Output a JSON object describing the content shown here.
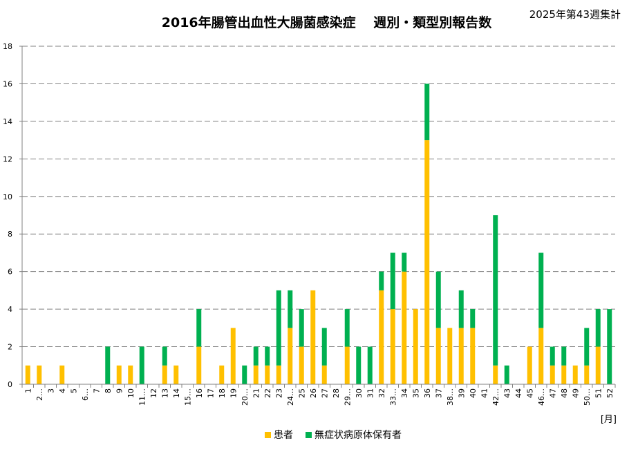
{
  "title": "2016年腸管出血性大腸菌感染症　 週別・類型別報告数",
  "subtitle": "2025年第43週集計",
  "x_unit_label": "[月]",
  "legend": [
    {
      "label": "患者",
      "color": "#FFC000"
    },
    {
      "label": "無症状病原体保有者",
      "color": "#00B050"
    }
  ],
  "chart_data": {
    "type": "bar",
    "stacked": true,
    "title": "2016年腸管出血性大腸菌感染症 週別・類型別報告数",
    "subtitle": "2025年第43週集計",
    "xlabel": "[月]",
    "ylabel": "",
    "ylim": [
      0,
      18
    ],
    "yticks": [
      0,
      2,
      4,
      6,
      8,
      10,
      12,
      14,
      16,
      18
    ],
    "grid": true,
    "legend_position": "bottom",
    "categories": [
      "1",
      "2…",
      "3",
      "4",
      "5",
      "6…",
      "7",
      "8",
      "9",
      "10",
      "11…",
      "12",
      "13",
      "14",
      "15…",
      "16",
      "17",
      "18",
      "19",
      "20…",
      "21",
      "22",
      "23",
      "24…",
      "25",
      "26",
      "27",
      "28",
      "29…",
      "30",
      "31",
      "32",
      "33…",
      "34",
      "35",
      "36",
      "37",
      "38…",
      "39",
      "40",
      "41",
      "42…",
      "43",
      "44",
      "45",
      "46…",
      "47",
      "48",
      "49",
      "50…",
      "51",
      "52"
    ],
    "series": [
      {
        "name": "患者",
        "color": "#FFC000",
        "values": [
          1,
          1,
          0,
          1,
          0,
          0,
          0,
          0,
          1,
          1,
          0,
          0,
          1,
          1,
          0,
          2,
          0,
          1,
          3,
          0,
          1,
          1,
          1,
          3,
          2,
          5,
          1,
          0,
          2,
          0,
          0,
          5,
          4,
          6,
          4,
          13,
          3,
          3,
          3,
          3,
          0,
          1,
          0,
          0,
          2,
          3,
          1,
          1,
          1,
          1,
          2,
          0
        ]
      },
      {
        "name": "無症状病原体保有者",
        "color": "#00B050",
        "values": [
          0,
          0,
          0,
          0,
          0,
          0,
          0,
          2,
          0,
          0,
          2,
          0,
          1,
          0,
          0,
          2,
          0,
          0,
          0,
          1,
          1,
          1,
          4,
          2,
          2,
          0,
          2,
          0,
          2,
          2,
          2,
          1,
          3,
          1,
          0,
          3,
          3,
          0,
          2,
          1,
          0,
          8,
          1,
          0,
          0,
          4,
          1,
          1,
          0,
          2,
          2,
          4
        ]
      }
    ]
  }
}
